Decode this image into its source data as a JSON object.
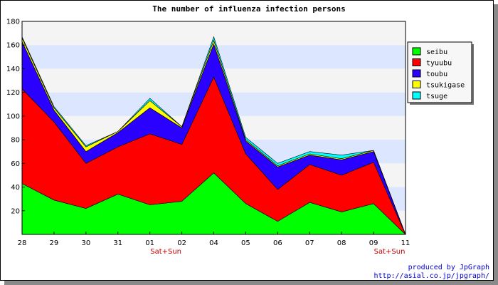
{
  "chart_data": {
    "type": "area",
    "stacked": true,
    "title": "The number of influenza infection persons",
    "categories": [
      "28",
      "29",
      "30",
      "31",
      "01",
      "02",
      "04",
      "05",
      "06",
      "07",
      "08",
      "09",
      "11"
    ],
    "category_notes": {
      "4": "Sat+Sun",
      "11": "Sat+Sun"
    },
    "ylim": [
      0,
      180
    ],
    "yticks": [
      20,
      40,
      60,
      80,
      100,
      120,
      140,
      160,
      180
    ],
    "grid": "horizontal bands",
    "legend_position": "top-right",
    "series": [
      {
        "name": "seibu",
        "color": "#00ff00",
        "values": [
          43,
          29,
          22,
          34,
          25,
          28,
          52,
          26,
          11,
          27,
          19,
          26,
          0
        ]
      },
      {
        "name": "tyuubu",
        "color": "#ff0000",
        "values": [
          80,
          66,
          38,
          40,
          60,
          48,
          81,
          42,
          27,
          32,
          31,
          35,
          0
        ]
      },
      {
        "name": "toubu",
        "color": "#2a00ff",
        "values": [
          40,
          10,
          10,
          12,
          22,
          14,
          28,
          11,
          19,
          8,
          13,
          9,
          0
        ]
      },
      {
        "name": "tsukigase",
        "color": "#ffff00",
        "values": [
          3,
          2,
          4,
          1,
          6,
          1,
          3,
          1,
          1,
          1,
          1,
          1,
          0
        ]
      },
      {
        "name": "tsuge",
        "color": "#00ffff",
        "values": [
          1,
          1,
          1,
          0,
          2,
          0,
          3,
          2,
          2,
          2,
          3,
          0,
          0
        ]
      }
    ]
  },
  "credit": {
    "line1": "produced by JpGraph",
    "line2": "http://asial.co.jp/jpgraph/"
  }
}
